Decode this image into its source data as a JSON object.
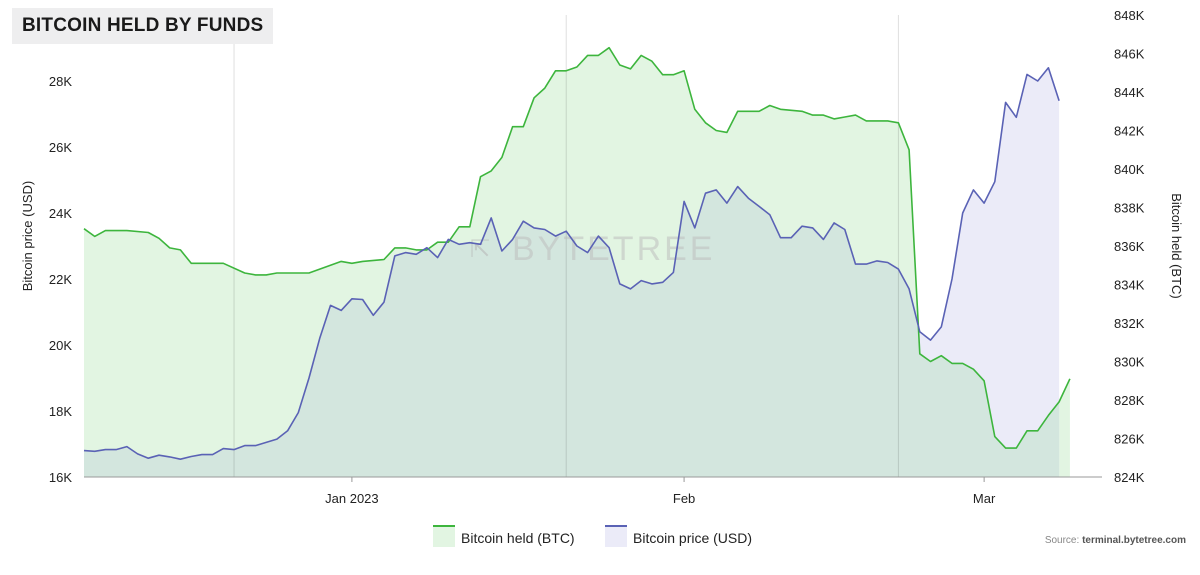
{
  "title": "BITCOIN HELD BY FUNDS",
  "watermark": "BYTETREE",
  "source": {
    "prefix": "Source:",
    "site": "terminal.bytetree.com"
  },
  "colors": {
    "held_line": "#3db53d",
    "held_fill": "#e2f5e2",
    "price_line": "#5a62b5",
    "price_fill": "#ebebf8",
    "overlap_fill": "#d3e6de"
  },
  "chart_data": {
    "type": "area",
    "x_range": [
      "2022-12-07",
      "2023-03-12"
    ],
    "x_ticks": [
      {
        "date": "2023-01-01",
        "label": "Jan 2023"
      },
      {
        "date": "2023-02-01",
        "label": "Feb"
      },
      {
        "date": "2023-03-01",
        "label": "Mar"
      }
    ],
    "y_left": {
      "label": "Bitcoin price (USD)",
      "min": 16000,
      "max": 30000,
      "ticks": [
        16000,
        18000,
        20000,
        22000,
        24000,
        26000,
        28000
      ],
      "tick_labels": [
        "16K",
        "18K",
        "20K",
        "22K",
        "24K",
        "26K",
        "28K"
      ]
    },
    "y_right": {
      "label": "Bitcoin held (BTC)",
      "min": 824000,
      "max": 848000,
      "ticks": [
        824000,
        826000,
        828000,
        830000,
        832000,
        834000,
        836000,
        838000,
        840000,
        842000,
        844000,
        846000,
        848000
      ],
      "tick_labels": [
        "824K",
        "826K",
        "828K",
        "830K",
        "832K",
        "834K",
        "836K",
        "838K",
        "840K",
        "842K",
        "844K",
        "846K",
        "848K"
      ]
    },
    "grid": "vertical",
    "legend_position": "bottom-center",
    "series": [
      {
        "name": "Bitcoin held (BTC)",
        "axis": "right",
        "points": [
          [
            "2022-12-07",
            836.9
          ],
          [
            "2022-12-08",
            836.5
          ],
          [
            "2022-12-09",
            836.8
          ],
          [
            "2022-12-11",
            836.8
          ],
          [
            "2022-12-13",
            836.7
          ],
          [
            "2022-12-14",
            836.4
          ],
          [
            "2022-12-15",
            835.9
          ],
          [
            "2022-12-16",
            835.8
          ],
          [
            "2022-12-17",
            835.1
          ],
          [
            "2022-12-20",
            835.1
          ],
          [
            "2022-12-22",
            834.6
          ],
          [
            "2022-12-23",
            834.5
          ],
          [
            "2022-12-24",
            834.5
          ],
          [
            "2022-12-25",
            834.6
          ],
          [
            "2022-12-28",
            834.6
          ],
          [
            "2022-12-30",
            835.0
          ],
          [
            "2022-12-31",
            835.2
          ],
          [
            "2023-01-01",
            835.1
          ],
          [
            "2023-01-02",
            835.2
          ],
          [
            "2023-01-04",
            835.3
          ],
          [
            "2023-01-05",
            835.9
          ],
          [
            "2023-01-06",
            835.9
          ],
          [
            "2023-01-07",
            835.8
          ],
          [
            "2023-01-08",
            835.8
          ],
          [
            "2023-01-09",
            836.2
          ],
          [
            "2023-01-10",
            836.2
          ],
          [
            "2023-01-11",
            837.0
          ],
          [
            "2023-01-12",
            837.0
          ],
          [
            "2023-01-13",
            839.6
          ],
          [
            "2023-01-14",
            839.9
          ],
          [
            "2023-01-15",
            840.6
          ],
          [
            "2023-01-16",
            842.2
          ],
          [
            "2023-01-17",
            842.2
          ],
          [
            "2023-01-18",
            843.7
          ],
          [
            "2023-01-19",
            844.2
          ],
          [
            "2023-01-20",
            845.1
          ],
          [
            "2023-01-21",
            845.1
          ],
          [
            "2023-01-22",
            845.3
          ],
          [
            "2023-01-23",
            845.9
          ],
          [
            "2023-01-24",
            845.9
          ],
          [
            "2023-01-25",
            846.3
          ],
          [
            "2023-01-26",
            845.4
          ],
          [
            "2023-01-27",
            845.2
          ],
          [
            "2023-01-28",
            845.9
          ],
          [
            "2023-01-29",
            845.6
          ],
          [
            "2023-01-30",
            844.9
          ],
          [
            "2023-01-31",
            844.9
          ],
          [
            "2023-02-01",
            845.1
          ],
          [
            "2023-02-02",
            843.1
          ],
          [
            "2023-02-03",
            842.4
          ],
          [
            "2023-02-04",
            842.0
          ],
          [
            "2023-02-05",
            841.9
          ],
          [
            "2023-02-06",
            843.0
          ],
          [
            "2023-02-08",
            843.0
          ],
          [
            "2023-02-09",
            843.3
          ],
          [
            "2023-02-10",
            843.1
          ],
          [
            "2023-02-12",
            843.0
          ],
          [
            "2023-02-13",
            842.8
          ],
          [
            "2023-02-14",
            842.8
          ],
          [
            "2023-02-15",
            842.6
          ],
          [
            "2023-02-16",
            842.7
          ],
          [
            "2023-02-17",
            842.8
          ],
          [
            "2023-02-18",
            842.5
          ],
          [
            "2023-02-20",
            842.5
          ],
          [
            "2023-02-21",
            842.4
          ],
          [
            "2023-02-22",
            841.0
          ],
          [
            "2023-02-23",
            830.4
          ],
          [
            "2023-02-24",
            830.0
          ],
          [
            "2023-02-25",
            830.3
          ],
          [
            "2023-02-26",
            829.9
          ],
          [
            "2023-02-27",
            829.9
          ],
          [
            "2023-02-28",
            829.6
          ],
          [
            "2023-03-01",
            829.0
          ],
          [
            "2023-03-02",
            826.1
          ],
          [
            "2023-03-03",
            825.5
          ],
          [
            "2023-03-04",
            825.5
          ],
          [
            "2023-03-05",
            826.4
          ],
          [
            "2023-03-06",
            826.4
          ],
          [
            "2023-03-07",
            827.2
          ],
          [
            "2023-03-08",
            827.9
          ],
          [
            "2023-03-09",
            829.1
          ]
        ]
      },
      {
        "name": "Bitcoin price (USD)",
        "axis": "left",
        "points": [
          [
            "2022-12-07",
            16800
          ],
          [
            "2022-12-08",
            16780
          ],
          [
            "2022-12-09",
            16830
          ],
          [
            "2022-12-10",
            16830
          ],
          [
            "2022-12-11",
            16920
          ],
          [
            "2022-12-12",
            16700
          ],
          [
            "2022-12-13",
            16570
          ],
          [
            "2022-12-14",
            16660
          ],
          [
            "2022-12-15",
            16610
          ],
          [
            "2022-12-16",
            16540
          ],
          [
            "2022-12-17",
            16620
          ],
          [
            "2022-12-18",
            16680
          ],
          [
            "2022-12-19",
            16680
          ],
          [
            "2022-12-20",
            16860
          ],
          [
            "2022-12-21",
            16830
          ],
          [
            "2022-12-22",
            16950
          ],
          [
            "2022-12-23",
            16950
          ],
          [
            "2022-12-24",
            17050
          ],
          [
            "2022-12-25",
            17150
          ],
          [
            "2022-12-26",
            17400
          ],
          [
            "2022-12-27",
            17950
          ],
          [
            "2022-12-28",
            19000
          ],
          [
            "2022-12-29",
            20200
          ],
          [
            "2022-12-30",
            21200
          ],
          [
            "2022-12-31",
            21050
          ],
          [
            "2023-01-01",
            21400
          ],
          [
            "2023-01-02",
            21380
          ],
          [
            "2023-01-03",
            20900
          ],
          [
            "2023-01-04",
            21300
          ],
          [
            "2023-01-05",
            22700
          ],
          [
            "2023-01-06",
            22800
          ],
          [
            "2023-01-07",
            22750
          ],
          [
            "2023-01-08",
            22950
          ],
          [
            "2023-01-09",
            22650
          ],
          [
            "2023-01-10",
            23200
          ],
          [
            "2023-01-11",
            23050
          ],
          [
            "2023-01-12",
            23100
          ],
          [
            "2023-01-13",
            23050
          ],
          [
            "2023-01-14",
            23850
          ],
          [
            "2023-01-15",
            22850
          ],
          [
            "2023-01-16",
            23200
          ],
          [
            "2023-01-17",
            23750
          ],
          [
            "2023-01-18",
            23550
          ],
          [
            "2023-01-19",
            23500
          ],
          [
            "2023-01-20",
            23300
          ],
          [
            "2023-01-21",
            23450
          ],
          [
            "2023-01-22",
            23000
          ],
          [
            "2023-01-23",
            22800
          ],
          [
            "2023-01-24",
            23300
          ],
          [
            "2023-01-25",
            22950
          ],
          [
            "2023-01-26",
            21850
          ],
          [
            "2023-01-27",
            21700
          ],
          [
            "2023-01-28",
            21950
          ],
          [
            "2023-01-29",
            21850
          ],
          [
            "2023-01-30",
            21900
          ],
          [
            "2023-01-31",
            22200
          ],
          [
            "2023-02-01",
            24350
          ],
          [
            "2023-02-02",
            23550
          ],
          [
            "2023-02-03",
            24600
          ],
          [
            "2023-02-04",
            24700
          ],
          [
            "2023-02-05",
            24300
          ],
          [
            "2023-02-06",
            24800
          ],
          [
            "2023-02-07",
            24450
          ],
          [
            "2023-02-08",
            24200
          ],
          [
            "2023-02-09",
            23950
          ],
          [
            "2023-02-10",
            23250
          ],
          [
            "2023-02-11",
            23250
          ],
          [
            "2023-02-12",
            23600
          ],
          [
            "2023-02-13",
            23550
          ],
          [
            "2023-02-14",
            23200
          ],
          [
            "2023-02-15",
            23700
          ],
          [
            "2023-02-16",
            23500
          ],
          [
            "2023-02-17",
            22450
          ],
          [
            "2023-02-18",
            22450
          ],
          [
            "2023-02-19",
            22550
          ],
          [
            "2023-02-20",
            22500
          ],
          [
            "2023-02-21",
            22300
          ],
          [
            "2023-02-22",
            21700
          ],
          [
            "2023-02-23",
            20400
          ],
          [
            "2023-02-24",
            20150
          ],
          [
            "2023-02-25",
            20550
          ],
          [
            "2023-02-26",
            22000
          ],
          [
            "2023-02-27",
            24000
          ],
          [
            "2023-02-28",
            24700
          ],
          [
            "2023-03-01",
            24300
          ],
          [
            "2023-03-02",
            24950
          ],
          [
            "2023-03-03",
            27350
          ],
          [
            "2023-03-04",
            26900
          ],
          [
            "2023-03-05",
            28200
          ],
          [
            "2023-03-06",
            28000
          ],
          [
            "2023-03-07",
            28400
          ],
          [
            "2023-03-08",
            27400
          ]
        ]
      }
    ]
  }
}
